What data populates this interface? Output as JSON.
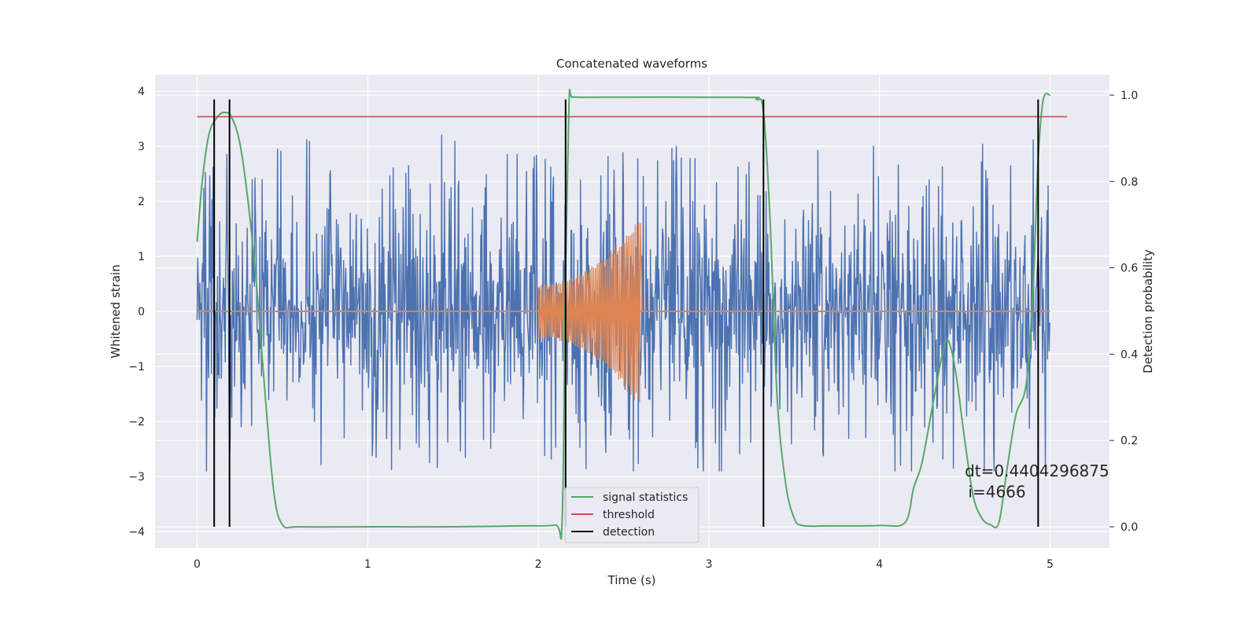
{
  "chart_data": {
    "type": "line",
    "title": "Concatenated waveforms",
    "xlabel": "Time (s)",
    "ylabel": "Whitened strain",
    "y2label": "Detection probability",
    "xlim": [
      -0.25,
      5.35
    ],
    "ylim": [
      -4.3,
      4.3
    ],
    "y2lim": [
      -0.05,
      1.05
    ],
    "xticks": [
      "0",
      "1",
      "2",
      "3",
      "4",
      "5"
    ],
    "yticks": [
      "4",
      "3",
      "2",
      "1",
      "0",
      "−1",
      "−2",
      "−3",
      "−4"
    ],
    "y2ticks": [
      "1.0",
      "0.8",
      "0.6",
      "0.4",
      "0.2",
      "0.0"
    ],
    "grid": true,
    "legend_position": "bottom-center",
    "series": [
      {
        "name": "",
        "axis": "left",
        "color": "#4c72b0",
        "kind": "noise",
        "x_range": [
          0,
          5.0
        ],
        "amplitude_envelope": [
          -2.9,
          3.2
        ],
        "typical_peak": 2.2
      },
      {
        "name": "",
        "axis": "left",
        "color": "#dd8452",
        "kind": "chirp",
        "x_range": [
          0,
          5.0
        ],
        "chirp_start": 2.0,
        "chirp_end": 2.6,
        "amplitude_start": 0.5,
        "amplitude_end": 1.8
      },
      {
        "name": "signal statistics",
        "axis": "right",
        "color": "#55a868",
        "x": [
          0,
          0.03,
          0.07,
          0.12,
          0.16,
          0.2,
          0.25,
          0.3,
          0.35,
          0.4,
          0.45,
          0.5,
          0.6,
          1.0,
          1.5,
          1.9,
          2.1,
          2.14,
          2.16,
          2.18,
          2.2,
          2.3,
          3.2,
          3.28,
          3.32,
          3.36,
          3.4,
          3.45,
          3.5,
          3.55,
          3.7,
          4.0,
          4.15,
          4.2,
          4.25,
          4.32,
          4.38,
          4.41,
          4.45,
          4.5,
          4.55,
          4.6,
          4.65,
          4.7,
          4.75,
          4.8,
          4.86,
          4.9,
          4.93,
          4.96,
          5.0
        ],
        "y": [
          0.66,
          0.8,
          0.91,
          0.95,
          0.96,
          0.95,
          0.89,
          0.75,
          0.55,
          0.3,
          0.08,
          0.005,
          0.0,
          0.0,
          0.0,
          0.002,
          0.004,
          0.02,
          0.6,
          0.98,
          0.995,
          0.995,
          0.995,
          0.99,
          0.96,
          0.7,
          0.3,
          0.1,
          0.02,
          0.003,
          0.002,
          0.003,
          0.01,
          0.09,
          0.15,
          0.3,
          0.42,
          0.425,
          0.35,
          0.2,
          0.07,
          0.02,
          0.005,
          0.01,
          0.14,
          0.26,
          0.33,
          0.55,
          0.85,
          0.99,
          1.0
        ]
      },
      {
        "name": "threshold",
        "axis": "right",
        "color": "#c44e52",
        "x": [
          0,
          5.1
        ],
        "y": [
          0.95,
          0.95
        ]
      },
      {
        "name": "detection",
        "axis": "right",
        "color": "#000000",
        "x": [
          0.1,
          0.19,
          2.16,
          3.32,
          4.93
        ],
        "y_range": [
          0.0,
          0.99
        ]
      }
    ],
    "annotations": [
      {
        "text": "dt=0.4404296875",
        "x": 4.5,
        "y": -3.0
      },
      {
        "text": "i=4666",
        "x": 4.52,
        "y": -3.38
      }
    ]
  }
}
